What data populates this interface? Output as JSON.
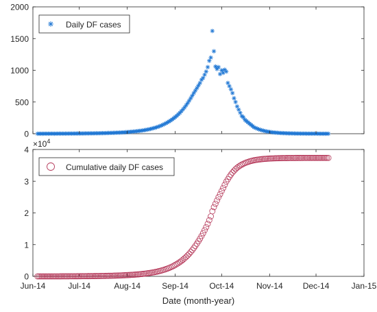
{
  "chart_data": [
    {
      "type": "scatter",
      "title": "",
      "xlabel": "",
      "ylabel": "",
      "xlim": [
        "2014-06-01",
        "2015-01-01"
      ],
      "ylim": [
        0,
        2000
      ],
      "yticks": [
        0,
        500,
        1000,
        1500,
        2000
      ],
      "ytick_labels": [
        "0",
        "500",
        "1000",
        "1500",
        "2000"
      ],
      "grid": false,
      "legend_position": "top-left",
      "series": [
        {
          "name": "Daily DF cases",
          "marker": "asterisk",
          "color": "#1f77d4",
          "x_start": "2014-06-04",
          "x_step_days": 1,
          "values": [
            0,
            0,
            0,
            0,
            0,
            1,
            0,
            1,
            0,
            1,
            1,
            0,
            1,
            1,
            2,
            1,
            2,
            1,
            2,
            2,
            2,
            3,
            2,
            3,
            3,
            3,
            4,
            3,
            4,
            4,
            4,
            5,
            5,
            5,
            6,
            6,
            6,
            7,
            7,
            7,
            8,
            8,
            9,
            9,
            10,
            11,
            12,
            12,
            13,
            14,
            15,
            16,
            17,
            18,
            19,
            21,
            22,
            24,
            26,
            28,
            30,
            32,
            34,
            36,
            39,
            42,
            45,
            48,
            52,
            56,
            60,
            65,
            70,
            75,
            81,
            88,
            95,
            102,
            110,
            120,
            130,
            140,
            152,
            165,
            178,
            193,
            208,
            225,
            243,
            262,
            283,
            306,
            330,
            356,
            384,
            414,
            447,
            482,
            520,
            560,
            600,
            640,
            680,
            720,
            760,
            800,
            850,
            880,
            930,
            980,
            1050,
            1150,
            1200,
            1620,
            1300,
            1060,
            1020,
            1050,
            940,
            1000,
            960,
            1010,
            980,
            800,
            750,
            700,
            640,
            560,
            500,
            430,
            380,
            330,
            280,
            260,
            220,
            200,
            180,
            160,
            140,
            120,
            100,
            90,
            80,
            70,
            62,
            54,
            48,
            42,
            37,
            33,
            29,
            25,
            22,
            19,
            17,
            15,
            13,
            11,
            10,
            9,
            8,
            7,
            6,
            5,
            5,
            4,
            4,
            3,
            3,
            3,
            2,
            2,
            2,
            2,
            1,
            1,
            1,
            1,
            1,
            1,
            1,
            1,
            0,
            0,
            0,
            0,
            0,
            0,
            0
          ]
        }
      ]
    },
    {
      "type": "scatter",
      "title": "",
      "xlabel": "Date (month-year)",
      "ylabel": "",
      "xlim": [
        "2014-06-01",
        "2015-01-01"
      ],
      "xticks": [
        "2014-06-01",
        "2014-07-01",
        "2014-08-01",
        "2014-09-01",
        "2014-10-01",
        "2014-11-01",
        "2014-12-01",
        "2015-01-01"
      ],
      "xtick_labels": [
        "Jun-14",
        "Jul-14",
        "Aug-14",
        "Sep-14",
        "Oct-14",
        "Nov-14",
        "Dec-14",
        "Jan-15"
      ],
      "ylim": [
        0,
        40000
      ],
      "yticks": [
        0,
        10000,
        20000,
        30000,
        40000
      ],
      "ytick_labels": [
        "0",
        "1",
        "2",
        "3",
        "4"
      ],
      "y_multiplier_label": "×10^4",
      "grid": false,
      "legend_position": "top-left",
      "series": [
        {
          "name": "Cumulative daily DF cases",
          "marker": "circle",
          "color": "#b5395a",
          "x_start": "2014-06-04",
          "x_step_days": 1,
          "cumulative_of": "Daily DF cases"
        }
      ]
    }
  ]
}
